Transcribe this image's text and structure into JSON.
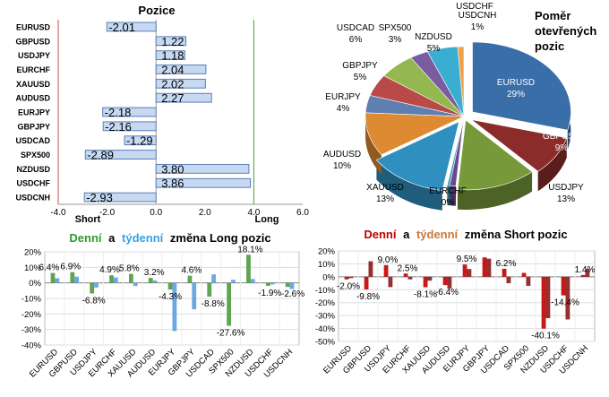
{
  "chart_data": [
    {
      "type": "bar",
      "orientation": "horizontal",
      "title": "Pozice",
      "categories": [
        "EURUSD",
        "GBPUSD",
        "USDJPY",
        "EURCHF",
        "XAUUSD",
        "AUDUSD",
        "EURJPY",
        "GBPJPY",
        "USDCAD",
        "SPX500",
        "NZDUSD",
        "USDCHF",
        "USDCNH"
      ],
      "values": [
        -2.01,
        1.22,
        1.18,
        2.04,
        2.02,
        2.27,
        -2.18,
        -2.16,
        -1.29,
        -2.89,
        3.8,
        3.86,
        -2.93
      ],
      "value_labels": [
        "-2.01",
        "1.22",
        "1.18",
        "2.04",
        "2.02",
        "2.27",
        "-2.18",
        "-2.16",
        "-1.29",
        "-2.89",
        "3.80",
        "3.86",
        "-2.93"
      ],
      "xlim": [
        -4.0,
        6.0
      ],
      "xticks": [
        "-4.0",
        "-2.0",
        "0.0",
        "2.0",
        "4.0",
        "6.0"
      ],
      "side_labels": {
        "left": "Short",
        "right": "Long"
      },
      "colors": {
        "bar": "#c6d9f1",
        "bar_edge": "#5b7db8",
        "left_line": "#c0504d",
        "right_line": "#4e9a3f"
      }
    },
    {
      "type": "pie",
      "title": "Poměr otevřených pozic",
      "slices": [
        {
          "label": "EURUSD",
          "pct": "29%",
          "value": 29,
          "color": "#3a6ea8"
        },
        {
          "label": "GBPUSD",
          "pct": "9%",
          "value": 9,
          "color": "#8b2c2a"
        },
        {
          "label": "USDJPY",
          "pct": "13%",
          "value": 13,
          "color": "#77993a"
        },
        {
          "label": "USDCHF",
          "pct": "",
          "value": 1,
          "color": "#6a4a8a"
        },
        {
          "label": "EURCHF",
          "pct": "0%",
          "value": 0.4,
          "color": "#2f9fbf"
        },
        {
          "label": "XAUUSD",
          "pct": "13%",
          "value": 13,
          "color": "#2f8fbf"
        },
        {
          "label": "AUDUSD",
          "pct": "10%",
          "value": 10,
          "color": "#de8a32"
        },
        {
          "label": "EURJPY",
          "pct": "4%",
          "value": 4,
          "color": "#5f7fb0"
        },
        {
          "label": "GBPJPY",
          "pct": "5%",
          "value": 5,
          "color": "#b84a47"
        },
        {
          "label": "USDCAD",
          "pct": "6%",
          "value": 6,
          "color": "#94b84f"
        },
        {
          "label": "SPX500",
          "pct": "3%",
          "value": 3,
          "color": "#7a5ca0"
        },
        {
          "label": "NZDUSD",
          "pct": "5%",
          "value": 5,
          "color": "#3aaed0"
        },
        {
          "label": "USDCNH",
          "pct": "1%",
          "value": 1,
          "color": "#f29f4a"
        }
      ]
    },
    {
      "type": "bar",
      "title": {
        "part1": "Denní",
        "part2": "a",
        "part3": "týdenní",
        "part4": "změna Long pozic"
      },
      "categories": [
        "EURUSD",
        "GBPUSD",
        "USDJPY",
        "EURCHF",
        "XAUUSD",
        "AUDUSD",
        "EURJPY",
        "GBPJPY",
        "USDCAD",
        "SPX500",
        "NZDUSD",
        "USDCHF",
        "USDCNH"
      ],
      "series": [
        {
          "values": [
            6.4,
            6.9,
            -6.8,
            4.9,
            5.8,
            3.2,
            -4.3,
            4.6,
            -8.8,
            -27.6,
            18.1,
            -1.9,
            -2.6
          ],
          "color": "#4e9a3f"
        },
        {
          "values": [
            3.0,
            4.0,
            -3.0,
            3.5,
            -2.0,
            1.5,
            -31.0,
            -17.0,
            5.5,
            2.0,
            2.5,
            -1.0,
            -4.0
          ],
          "color": "#5aa0e0"
        }
      ],
      "data_labels": [
        {
          "text": "6.4%",
          "cat": 0,
          "y": 6.4
        },
        {
          "text": "6.9%",
          "cat": 1,
          "y": 6.9
        },
        {
          "text": "-6.8%",
          "cat": 2,
          "y": -6.8
        },
        {
          "text": "4.9%",
          "cat": 3,
          "y": 4.9
        },
        {
          "text": "5.8%",
          "cat": 4,
          "y": 5.8
        },
        {
          "text": "3.2%",
          "cat": 5,
          "y": 3.2
        },
        {
          "text": "-4.3%",
          "cat": 6,
          "y": -4.3
        },
        {
          "text": "4.6%",
          "cat": 7,
          "y": 4.6
        },
        {
          "text": "-8.8%",
          "cat": 8,
          "y": -8.8
        },
        {
          "text": "-27.6%",
          "cat": 9,
          "y": -27.6
        },
        {
          "text": "18.1%",
          "cat": 10,
          "y": 18.1
        },
        {
          "text": "-1.9%",
          "cat": 11,
          "y": -1.9
        },
        {
          "text": "-2.6%",
          "cat": 12,
          "y": -2.6
        }
      ],
      "ylim": [
        -40,
        20
      ],
      "yticks": [
        "20%",
        "10%",
        "0%",
        "-10%",
        "-20%",
        "-30%",
        "-40%"
      ]
    },
    {
      "type": "bar",
      "title": {
        "part1": "Denní",
        "part2": "a",
        "part3": "týdenní",
        "part4": "změna Short pozic"
      },
      "categories": [
        "EURUSD",
        "GBPUSD",
        "USDJPY",
        "EURCHF",
        "XAUUSD",
        "AUDUSD",
        "EURJPY",
        "GBPJPY",
        "USDCAD",
        "SPX500",
        "NZDUSD",
        "USDCHF",
        "USDCNH"
      ],
      "series": [
        {
          "values": [
            -2.0,
            -9.8,
            9.0,
            2.5,
            -8.1,
            -6.4,
            9.5,
            15.0,
            6.2,
            3.0,
            -40.1,
            -14.4,
            1.4
          ],
          "color": "#c00000"
        },
        {
          "values": [
            -1.0,
            12.0,
            -8.0,
            -2.0,
            -3.0,
            -9.0,
            6.0,
            14.0,
            -5.0,
            -7.0,
            -32.0,
            -33.0,
            6.0
          ],
          "color": "#8b1a1a"
        }
      ],
      "data_labels": [
        {
          "text": "-2.0%",
          "cat": 0,
          "y": -2.0
        },
        {
          "text": "-9.8%",
          "cat": 1,
          "y": -9.8
        },
        {
          "text": "9.0%",
          "cat": 2,
          "y": 9.0
        },
        {
          "text": "2.5%",
          "cat": 3,
          "y": 2.5
        },
        {
          "text": "-8.1%",
          "cat": 4,
          "y": -8.1
        },
        {
          "text": "-6.4%",
          "cat": 5,
          "y": -6.4
        },
        {
          "text": "9.5%",
          "cat": 6,
          "y": 9.5
        },
        {
          "text": "6.2%",
          "cat": 8,
          "y": 6.2
        },
        {
          "text": "-40.1%",
          "cat": 10,
          "y": -40.1
        },
        {
          "text": "-14.4%",
          "cat": 11,
          "y": -14.4
        },
        {
          "text": "1.4%",
          "cat": 12,
          "y": 1.4
        }
      ],
      "ylim": [
        -50,
        20
      ],
      "yticks": [
        "20%",
        "10%",
        "0%",
        "-10%",
        "-20%",
        "-30%",
        "-40%",
        "-50%"
      ]
    }
  ]
}
